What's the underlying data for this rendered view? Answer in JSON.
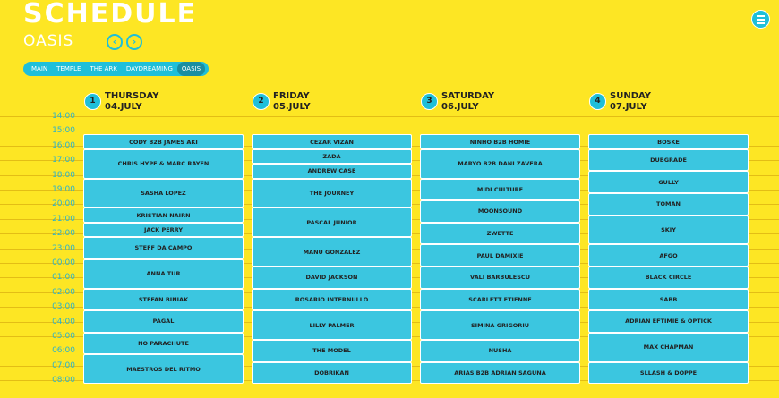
{
  "header": {
    "title": "SCHEDULE",
    "stage": "OASIS"
  },
  "nav": {
    "prev_icon": "chevron-left-icon",
    "next_icon": "chevron-right-icon",
    "menu_icon": "hamburger-icon"
  },
  "tabs": [
    {
      "label": "MAIN"
    },
    {
      "label": "TEMPLE"
    },
    {
      "label": "THE ARK"
    },
    {
      "label": "DAYDREAMING"
    },
    {
      "label": "OASIS",
      "active": true
    }
  ],
  "times": [
    "14:00",
    "15:00",
    "16:00",
    "17:00",
    "18:00",
    "19:00",
    "20:00",
    "21:00",
    "22:00",
    "23:00",
    "00:00",
    "01:00",
    "02:00",
    "03:00",
    "04:00",
    "05:00",
    "06:00",
    "07:00",
    "08:00"
  ],
  "colors": {
    "background": "#fde624",
    "slot": "#3bc6e0",
    "accent": "#1fbfd9",
    "active_tab": "#1a8ea1"
  },
  "days": [
    {
      "num": "1",
      "name": "THURSDAY",
      "date": "04.JULY",
      "slots": [
        {
          "artist": "CODY B2B JAMES AKI",
          "start": "15:00",
          "end": "16:00"
        },
        {
          "artist": "CHRIS HYPE & MARC RAYEN",
          "start": "16:00",
          "end": "18:00"
        },
        {
          "artist": "SASHA LOPEZ",
          "start": "18:00",
          "end": "20:00"
        },
        {
          "artist": "KRISTIAN NAIRN",
          "start": "20:00",
          "end": "21:00"
        },
        {
          "artist": "JACK PERRY",
          "start": "21:00",
          "end": "22:00"
        },
        {
          "artist": "STEFF DA CAMPO",
          "start": "22:00",
          "end": "23:30"
        },
        {
          "artist": "ANNA TUR",
          "start": "23:30",
          "end": "01:30"
        },
        {
          "artist": "STEFAN BINIAK",
          "start": "01:30",
          "end": "03:00"
        },
        {
          "artist": "PAGAL",
          "start": "03:00",
          "end": "04:30"
        },
        {
          "artist": "NO PARACHUTE",
          "start": "04:30",
          "end": "06:00"
        },
        {
          "artist": "MAESTROS DEL RITMO",
          "start": "06:00",
          "end": "08:00"
        }
      ]
    },
    {
      "num": "2",
      "name": "FRIDAY",
      "date": "05.JULY",
      "slots": [
        {
          "artist": "CEZAR VIZAN",
          "start": "15:00",
          "end": "16:00"
        },
        {
          "artist": "ZADA",
          "start": "16:00",
          "end": "17:00"
        },
        {
          "artist": "ANDREW CASE",
          "start": "17:00",
          "end": "18:00"
        },
        {
          "artist": "THE JOURNEY",
          "start": "18:00",
          "end": "20:00"
        },
        {
          "artist": "PASCAL JUNIOR",
          "start": "20:00",
          "end": "22:00"
        },
        {
          "artist": "MANU GONZALEZ",
          "start": "22:00",
          "end": "00:00"
        },
        {
          "artist": "DAVID JACKSON",
          "start": "00:00",
          "end": "01:30"
        },
        {
          "artist": "ROSARIO INTERNULLO",
          "start": "01:30",
          "end": "03:00"
        },
        {
          "artist": "LILLY PALMER",
          "start": "03:00",
          "end": "05:00"
        },
        {
          "artist": "THE MODEL",
          "start": "05:00",
          "end": "06:30"
        },
        {
          "artist": "DOBRIKAN",
          "start": "06:30",
          "end": "08:00"
        }
      ]
    },
    {
      "num": "3",
      "name": "SATURDAY",
      "date": "06.JULY",
      "slots": [
        {
          "artist": "NINHO B2B HOMIE",
          "start": "15:00",
          "end": "16:00"
        },
        {
          "artist": "MARYO B2B DANI ZAVERA",
          "start": "16:00",
          "end": "18:00"
        },
        {
          "artist": "MIDI CULTURE",
          "start": "18:00",
          "end": "19:30"
        },
        {
          "artist": "MOONSOUND",
          "start": "19:30",
          "end": "21:00"
        },
        {
          "artist": "ZWETTE",
          "start": "21:00",
          "end": "22:30"
        },
        {
          "artist": "PAUL DAMIXIE",
          "start": "22:30",
          "end": "00:00"
        },
        {
          "artist": "VALI BARBULESCU",
          "start": "00:00",
          "end": "01:30"
        },
        {
          "artist": "SCARLETT ETIENNE",
          "start": "01:30",
          "end": "03:00"
        },
        {
          "artist": "SIMINA GRIGORIU",
          "start": "03:00",
          "end": "05:00"
        },
        {
          "artist": "NUSHA",
          "start": "05:00",
          "end": "06:30"
        },
        {
          "artist": "ARIAS B2B ADRIAN SAGUNA",
          "start": "06:30",
          "end": "08:00"
        }
      ]
    },
    {
      "num": "4",
      "name": "SUNDAY",
      "date": "07.JULY",
      "slots": [
        {
          "artist": "BOSKE",
          "start": "15:00",
          "end": "16:00"
        },
        {
          "artist": "DUBGRADE",
          "start": "16:00",
          "end": "17:30"
        },
        {
          "artist": "GULLY",
          "start": "17:30",
          "end": "19:00"
        },
        {
          "artist": "TOMAN",
          "start": "19:00",
          "end": "20:30"
        },
        {
          "artist": "SKIY",
          "start": "20:30",
          "end": "22:30"
        },
        {
          "artist": "AFGO",
          "start": "22:30",
          "end": "00:00"
        },
        {
          "artist": "BLACK CIRCLE",
          "start": "00:00",
          "end": "01:30"
        },
        {
          "artist": "SABB",
          "start": "01:30",
          "end": "03:00"
        },
        {
          "artist": "ADRIAN EFTIMIE & OPTICK",
          "start": "03:00",
          "end": "04:30"
        },
        {
          "artist": "MAX CHAPMAN",
          "start": "04:30",
          "end": "06:30"
        },
        {
          "artist": "SLLASH & DOPPE",
          "start": "06:30",
          "end": "08:00"
        }
      ]
    }
  ]
}
